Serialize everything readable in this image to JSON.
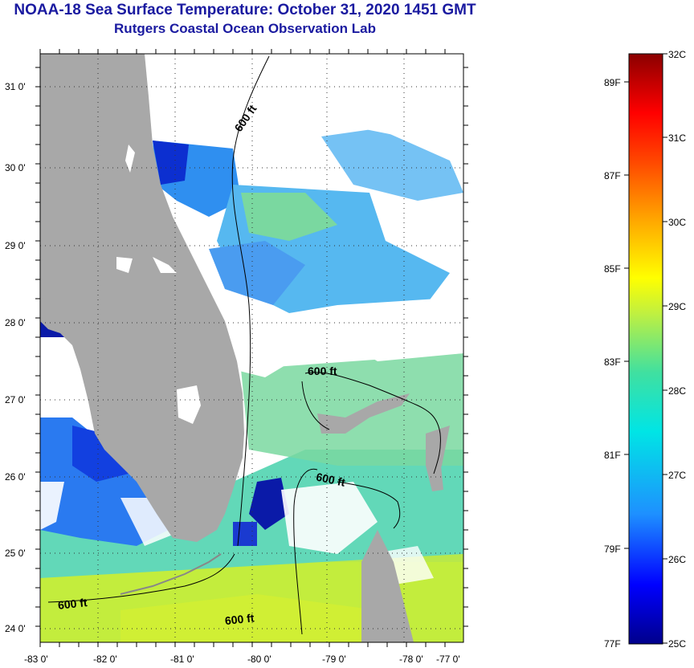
{
  "header": {
    "title": "NOAA-18 Sea Surface Temperature:  October 31, 2020 1451 GMT",
    "subtitle": "Rutgers Coastal Ocean Observation Lab"
  },
  "map": {
    "lat_labels": [
      "31 0'",
      "30 0'",
      "29 0'",
      "28 0'",
      "27 0'",
      "26 0'",
      "25 0'",
      "24 0'"
    ],
    "lon_labels": [
      "-83 0'",
      "-82 0'",
      "-81 0'",
      "-80 0'",
      "-79 0'",
      "-78 0'",
      "-77 0'"
    ],
    "isobath_labels": [
      "600 ft",
      "600 ft",
      "600 ft",
      "600 ft",
      "600 ft"
    ],
    "land_color": "#a8a8a8",
    "cloud_color": "#ffffff"
  },
  "colorbar": {
    "celsius_labels": [
      "32C",
      "31C",
      "30C",
      "29C",
      "28C",
      "27C",
      "26C",
      "25C"
    ],
    "fahrenheit_labels": [
      "89F",
      "87F",
      "85F",
      "83F",
      "81F",
      "79F",
      "77F"
    ],
    "stops": [
      "#00008b",
      "#0000ff",
      "#1e90ff",
      "#00e5e5",
      "#40e0a0",
      "#c0f040",
      "#ffff00",
      "#ffa500",
      "#ff4500",
      "#ff0000",
      "#8b0000"
    ]
  }
}
